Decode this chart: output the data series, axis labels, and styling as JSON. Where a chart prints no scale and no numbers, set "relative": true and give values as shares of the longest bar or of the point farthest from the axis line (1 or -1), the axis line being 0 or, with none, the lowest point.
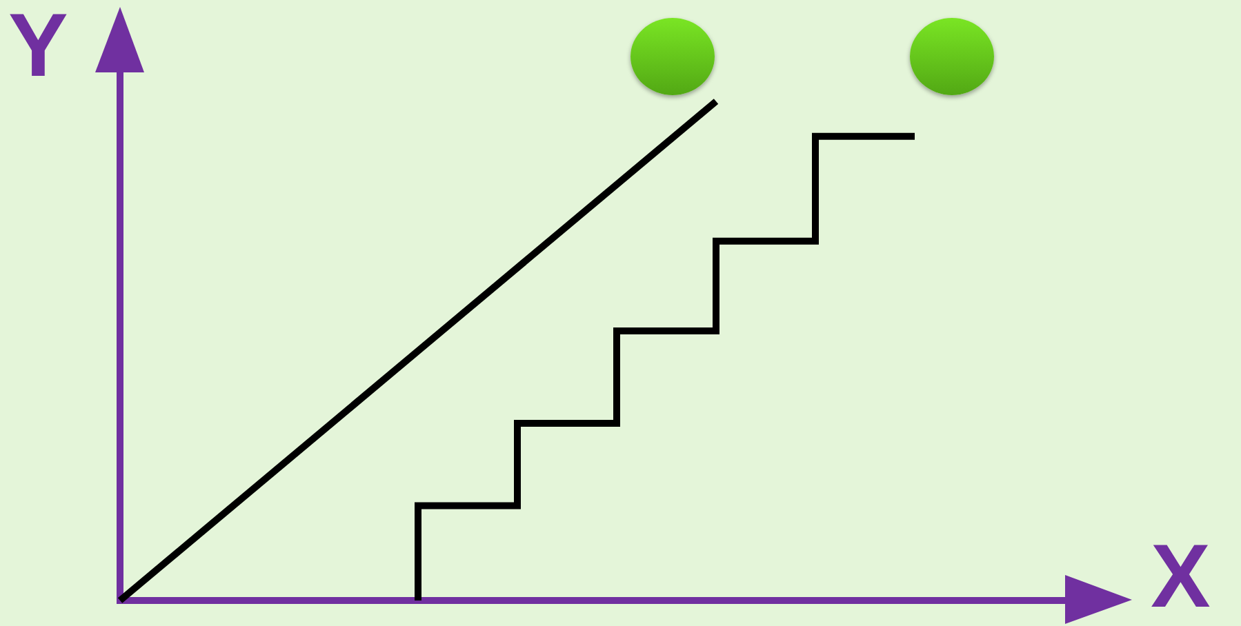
{
  "chart_data": {
    "type": "line",
    "xlabel": "X",
    "ylabel": "Y",
    "relative": true,
    "categories": [
      null,
      null,
      null,
      null,
      null,
      null,
      null,
      null,
      null,
      null,
      null
    ],
    "series": [
      {
        "type": "line",
        "color": "#000000",
        "values": [
          0,
          null,
          null,
          null,
          null,
          null,
          1,
          null,
          null,
          null,
          null
        ]
      },
      {
        "type": "step",
        "color": "#000000",
        "values": [
          null,
          null,
          null,
          0,
          0.19,
          0.355,
          0.54,
          0.72,
          0.93,
          null,
          null
        ]
      }
    ],
    "legend": false,
    "grid": false,
    "tick_labels": false,
    "marker": "none"
  }
}
